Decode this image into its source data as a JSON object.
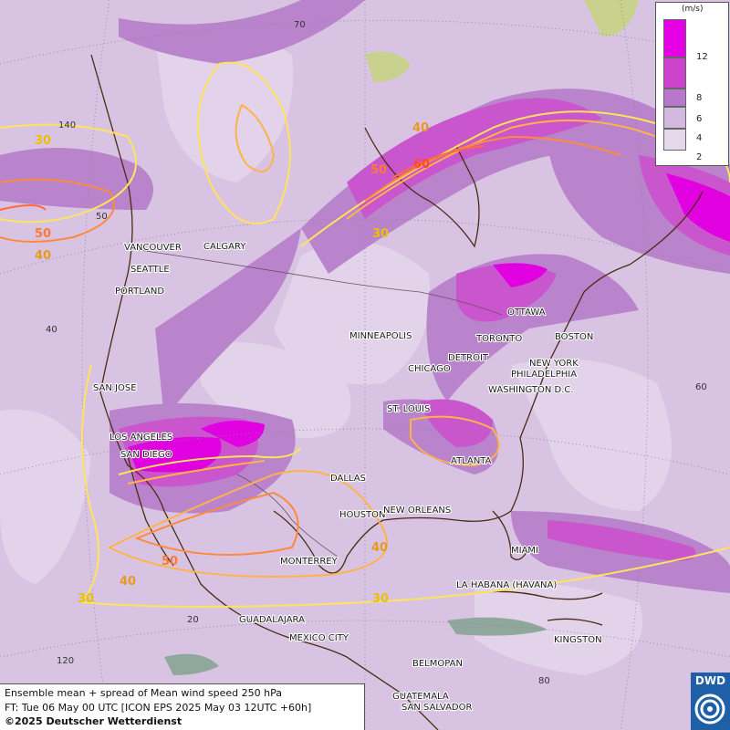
{
  "map": {
    "unit_label": "(m/s)",
    "legend": [
      {
        "value": "12",
        "color": "#e600e6"
      },
      {
        "value": "8",
        "color": "#cc44cc"
      },
      {
        "value": "6",
        "color": "#b877cc"
      },
      {
        "value": "4",
        "color": "#d3b8e0"
      },
      {
        "value": "2",
        "color": "#e4d8ea"
      }
    ],
    "contour_labels": [
      "30",
      "40",
      "50",
      "60"
    ],
    "grid_labels": [
      "70",
      "140",
      "50",
      "40",
      "60",
      "20",
      "120",
      "80"
    ],
    "cities": [
      "VANCOUVER",
      "CALGARY",
      "SEATTLE",
      "PORTLAND",
      "MINNEAPOLIS",
      "OTTAWA",
      "TORONTO",
      "BOSTON",
      "DETROIT",
      "NEW YORK",
      "CHICAGO",
      "PHILADELPHIA",
      "WASHINGTON D.C.",
      "SAN JOSE",
      "ST. LOUIS",
      "LOS ANGELES",
      "SAN DIEGO",
      "ATLANTA",
      "DALLAS",
      "HOUSTON",
      "NEW ORLEANS",
      "MIAMI",
      "MONTERREY",
      "LA HABANA (HAVANA)",
      "GUADALAJARA",
      "MEXICO CITY",
      "KINGSTON",
      "BELMOPAN",
      "GUATEMALA",
      "SAN SALVADOR"
    ]
  },
  "info": {
    "line1": "Ensemble mean + spread of Mean wind speed 250 hPa",
    "line2": "FT: Tue 06 May 00 UTC [ICON EPS 2025 May 03 12UTC +60h]",
    "line3": "©2025 Deutscher Wetterdienst"
  },
  "logo": {
    "text": "DWD",
    "color": "#1f5fa8"
  }
}
